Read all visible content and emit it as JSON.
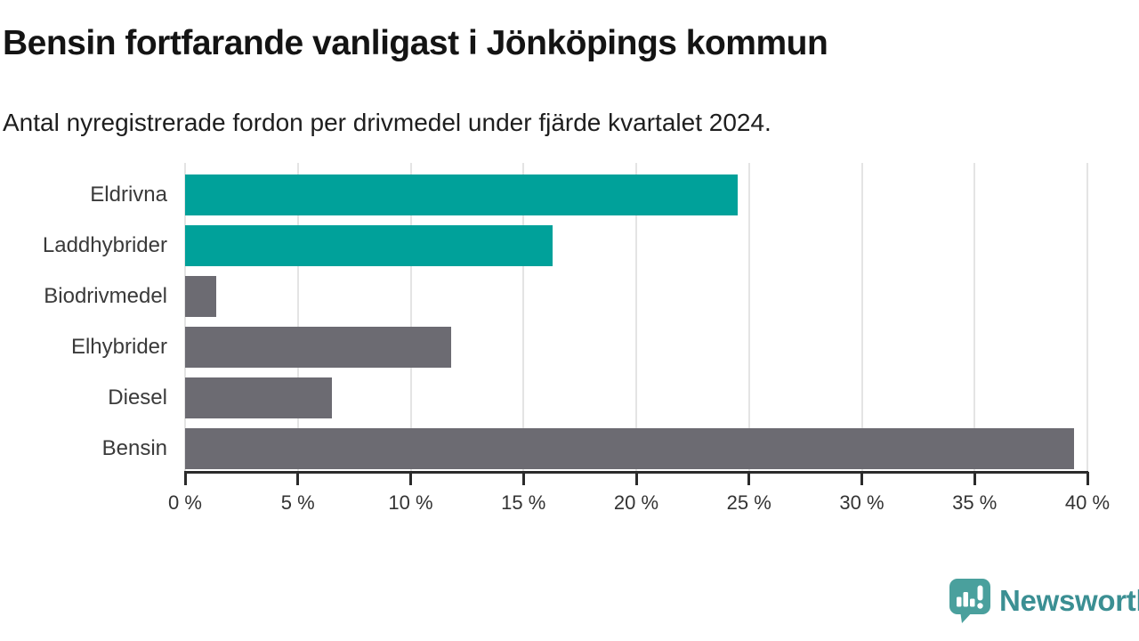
{
  "header": {
    "title": "Bensin fortfarande vanligast i Jönköpings kommun",
    "subtitle": "Antal nyregistrerade fordon per drivmedel under fjärde kvartalet 2024."
  },
  "chart_data": {
    "type": "bar",
    "orientation": "horizontal",
    "title": "Bensin fortfarande vanligast i Jönköpings kommun",
    "subtitle": "Antal nyregistrerade fordon per drivmedel under fjärde kvartalet 2024.",
    "categories": [
      "Eldrivna",
      "Laddhybrider",
      "Biodrivmedel",
      "Elhybrider",
      "Diesel",
      "Bensin"
    ],
    "values": [
      24.5,
      16.3,
      1.4,
      11.8,
      6.5,
      39.4
    ],
    "unit": "%",
    "highlighted": [
      true,
      true,
      false,
      false,
      false,
      false
    ],
    "colors": {
      "highlight": "#00a19a",
      "default": "#6c6b72"
    },
    "xlim": [
      0,
      40
    ],
    "x_ticks": [
      0,
      5,
      10,
      15,
      20,
      25,
      30,
      35,
      40
    ],
    "x_tick_labels": [
      "0 %",
      "5 %",
      "10 %",
      "15 %",
      "20 %",
      "25 %",
      "30 %",
      "35 %",
      "40 %"
    ],
    "xlabel": "",
    "ylabel": "",
    "grid": "vertical",
    "legend": "none"
  },
  "footer": {
    "brand": "Newsworthy",
    "brand_color": "#3b8f93",
    "logo_color": "#4aa09d",
    "logo_icon": "bar-chart-speech-bubble"
  }
}
